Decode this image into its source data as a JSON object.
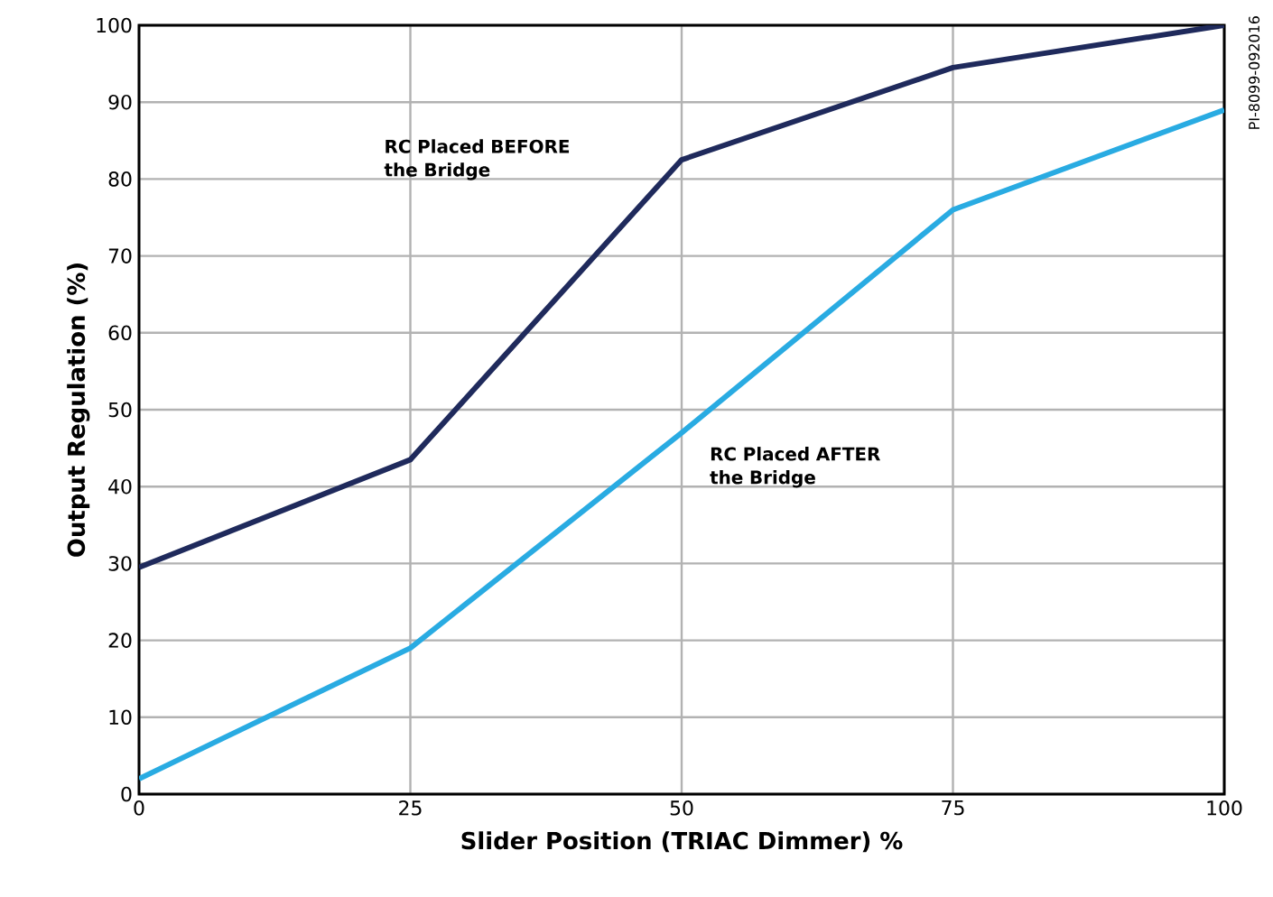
{
  "chart_data": {
    "type": "line",
    "xlabel": "Slider Position (TRIAC Dimmer) %",
    "ylabel": "Output Regulation (%)",
    "x": [
      0,
      25,
      50,
      75,
      100
    ],
    "series": [
      {
        "color": "#1f2a5c",
        "values": [
          29.5,
          43.5,
          82.5,
          94.5,
          100
        ]
      },
      {
        "color": "#29abe2",
        "values": [
          2,
          19,
          47,
          76,
          89
        ]
      }
    ],
    "xlim": [
      0,
      100
    ],
    "ylim": [
      0,
      100
    ],
    "xticks": [
      0,
      25,
      50,
      75,
      100
    ],
    "yticks": [
      0,
      10,
      20,
      30,
      40,
      50,
      60,
      70,
      80,
      90,
      100
    ],
    "grid": true,
    "marker": "none",
    "line_style": "solid",
    "annotations": [
      "RC Placed BEFORE the Bridge",
      "RC Placed AFTER the Bridge",
      "PI-8099-092016"
    ]
  }
}
